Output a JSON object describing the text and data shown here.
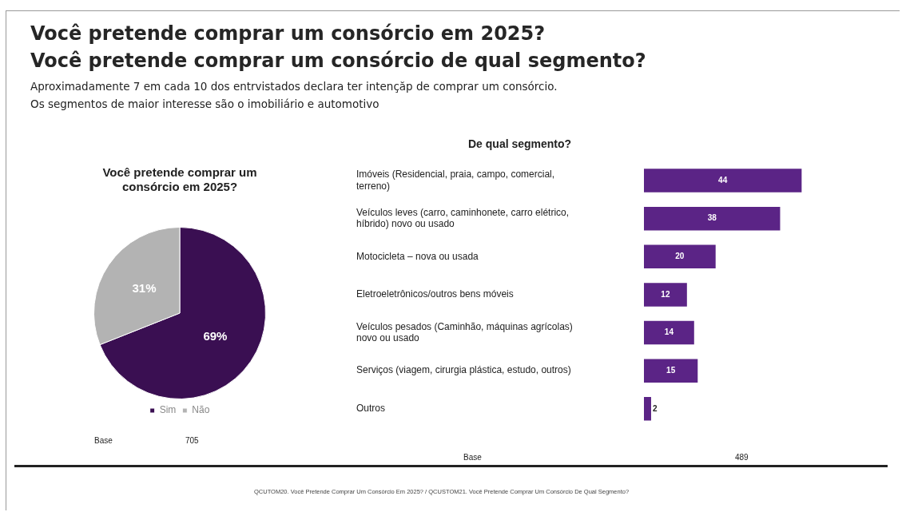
{
  "chart_data": [
    {
      "type": "pie",
      "title": "Você pretende comprar um consórcio em 2025?",
      "categories": [
        "Sim",
        "Não"
      ],
      "values": [
        69,
        31
      ],
      "colors": [
        "#3a0f52",
        "#b3b3b3"
      ],
      "value_labels": [
        "69%",
        "31%"
      ],
      "legend": "bottom",
      "annotations": [
        "Você pretende comprar um consórcio em 2025?",
        "Você pretende comprar um consórcio de qual segmento?",
        "Aproximadamente 7 em cada 10 dos entrvistados declara ter intençăp de comprar um consórcio.",
        "Os segmentos de maior interesse são o imobiliário e automotivo",
        "Base",
        "705",
        "QCUTOM20. Você Pretende Comprar Um Consórcio Em 2025? / QCUSTOM21. Você Pretende Comprar Um Consórcio De Qual Segmento?"
      ]
    },
    {
      "type": "bar",
      "orientation": "horizontal",
      "title": "De qual segmento?",
      "categories": [
        "Imóveis (Residencial, praia, campo, comercial, terreno)",
        "Veículos leves (carro, caminhonete, carro elétrico, híbrido) novo ou usado",
        "Motocicleta – nova ou usada",
        "Eletroeletrônicos/outros bens móveis",
        "Veículos pesados (Caminhão, máquinas agrícolas) novo ou usado",
        "Serviços (viagem, cirurgia plástica, estudo, outros)",
        "Outros"
      ],
      "values": [
        44,
        38,
        20,
        12,
        14,
        15,
        2
      ],
      "color": "#5b2486",
      "data_labels": true,
      "legend": false,
      "annotations": [
        "Base",
        "489"
      ]
    }
  ]
}
